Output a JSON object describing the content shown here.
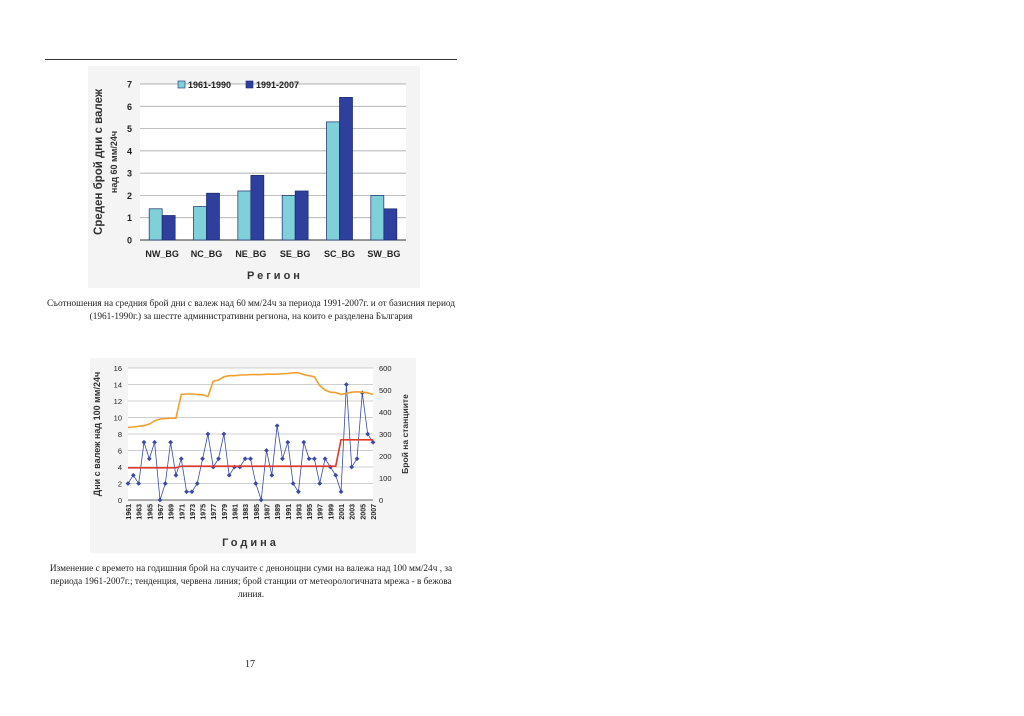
{
  "page_number": "17",
  "figure1": {
    "caption": "Съотношения на средния брой дни с валеж над 60 мм/24ч за периода 1991-2007г. и от базисния период (1961-1990г.) за шестте административни региона, на които е разделена България",
    "chart_data": {
      "type": "bar",
      "categories": [
        "NW_BG",
        "NC_BG",
        "NE_BG",
        "SE_BG",
        "SC_BG",
        "SW_BG"
      ],
      "series": [
        {
          "name": "1961-1990",
          "values": [
            1.4,
            1.5,
            2.2,
            2.0,
            5.3,
            2.0
          ],
          "color": "#7fd0d8"
        },
        {
          "name": "1991-2007",
          "values": [
            1.1,
            2.1,
            2.9,
            2.2,
            6.4,
            1.4
          ],
          "color": "#2e3f9e"
        }
      ],
      "ylabel_line1": "Среден брой дни с валеж",
      "ylabel_line2": "над 60 мм/24ч",
      "xlabel": "Регион",
      "ylim": [
        0,
        7
      ],
      "yticks": [
        "0",
        "1",
        "2",
        "3",
        "4",
        "5",
        "6",
        "7"
      ],
      "grid": true,
      "legend": "top-left"
    }
  },
  "figure2": {
    "caption": "Изменение с времето на годишния брой на случаите с денонощни суми на валежа над 100 мм/24ч , за периода 1961-2007г.; тенденция, червена линия; брой станции от метеорологичната мрежа - в бежова линия.",
    "chart_data": {
      "type": "line",
      "x": [
        1961,
        1962,
        1963,
        1964,
        1965,
        1966,
        1967,
        1968,
        1969,
        1970,
        1971,
        1972,
        1973,
        1974,
        1975,
        1976,
        1977,
        1978,
        1979,
        1980,
        1981,
        1982,
        1983,
        1984,
        1985,
        1986,
        1987,
        1988,
        1989,
        1990,
        1991,
        1992,
        1993,
        1994,
        1995,
        1996,
        1997,
        1998,
        1999,
        2000,
        2001,
        2002,
        2003,
        2004,
        2005,
        2006,
        2007
      ],
      "xticks": [
        "1961",
        "1963",
        "1965",
        "1967",
        "1969",
        "1971",
        "1973",
        "1975",
        "1977",
        "1979",
        "1981",
        "1983",
        "1985",
        "1987",
        "1989",
        "1991",
        "1993",
        "1995",
        "1997",
        "1999",
        "2001",
        "2003",
        "2005",
        "2007"
      ],
      "series": [
        {
          "name": "events",
          "axis": "left",
          "color": "#3a4aa8",
          "marker": "diamond",
          "values": [
            2,
            3,
            2,
            7,
            5,
            7,
            0,
            2,
            7,
            3,
            5,
            1,
            1,
            2,
            5,
            8,
            4,
            5,
            8,
            3,
            4,
            4,
            5,
            5,
            2,
            0,
            6,
            3,
            9,
            5,
            7,
            2,
            1,
            7,
            5,
            5,
            2,
            5,
            4,
            3,
            1,
            14,
            4,
            5,
            13,
            8,
            7
          ]
        },
        {
          "name": "trend",
          "axis": "left",
          "color": "#e03a2a",
          "values": [
            3.9,
            3.9,
            3.9,
            3.9,
            3.9,
            3.9,
            3.9,
            3.9,
            3.9,
            3.9,
            4.1,
            4.1,
            4.1,
            4.1,
            4.1,
            4.1,
            4.1,
            4.1,
            4.1,
            4.1,
            4.1,
            4.1,
            4.1,
            4.1,
            4.1,
            4.1,
            4.1,
            4.1,
            4.1,
            4.1,
            4.1,
            4.1,
            4.1,
            4.1,
            4.1,
            4.1,
            4.1,
            4.1,
            4.1,
            4.1,
            7.3,
            7.3,
            7.3,
            7.3,
            7.3,
            7.3,
            7.3
          ]
        },
        {
          "name": "stations",
          "axis": "right",
          "color": "#f0a030",
          "values": [
            330,
            332,
            335,
            338,
            345,
            360,
            368,
            370,
            372,
            372,
            480,
            482,
            482,
            480,
            478,
            470,
            540,
            545,
            560,
            565,
            565,
            568,
            568,
            570,
            570,
            570,
            572,
            572,
            572,
            574,
            575,
            578,
            578,
            570,
            565,
            560,
            520,
            500,
            490,
            488,
            480,
            485,
            490,
            492,
            490,
            487,
            480
          ]
        }
      ],
      "ylabel": "Дни с валеж над 100 мм/24ч",
      "y2label": "Брой на станциите",
      "xlabel": "Година",
      "ylim": [
        0,
        16
      ],
      "yticks": [
        "0",
        "2",
        "4",
        "6",
        "8",
        "10",
        "12",
        "14",
        "16"
      ],
      "y2lim": [
        0,
        600
      ],
      "y2ticks": [
        "0",
        "100",
        "200",
        "300",
        "400",
        "500",
        "600"
      ],
      "grid": true
    }
  }
}
